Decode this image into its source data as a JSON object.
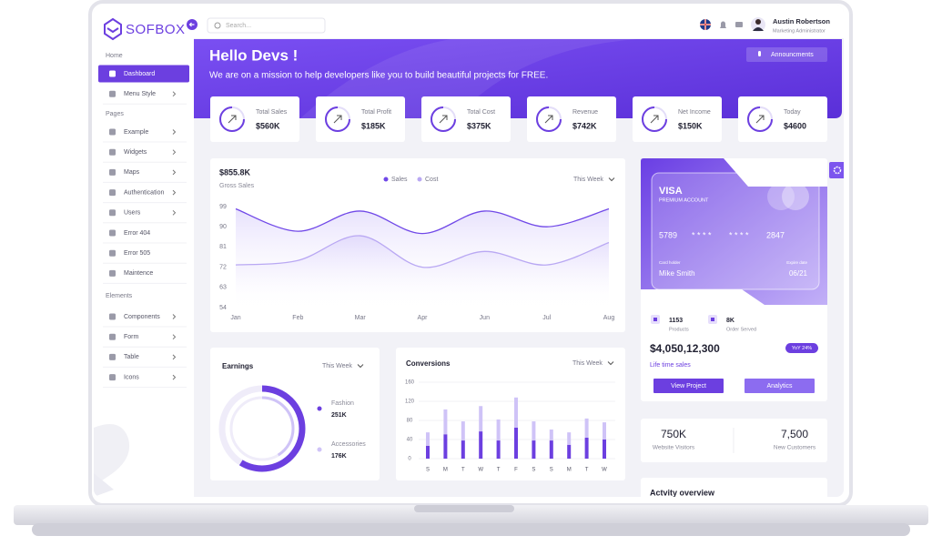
{
  "brand": "SOFBOX",
  "search_placeholder": "Search...",
  "user": {
    "name": "Austin Robertson",
    "role": "Marketing Administrator"
  },
  "sidebar": [
    {
      "title": "Home",
      "items": [
        {
          "label": "Dashboard",
          "active": true,
          "submenu": false
        },
        {
          "label": "Menu Style",
          "submenu": true
        }
      ]
    },
    {
      "title": "Pages",
      "items": [
        {
          "label": "Example",
          "submenu": true
        },
        {
          "label": "Widgets",
          "submenu": true
        },
        {
          "label": "Maps",
          "submenu": true
        },
        {
          "label": "Authentication",
          "submenu": true
        },
        {
          "label": "Users",
          "submenu": true
        },
        {
          "label": "Error 404",
          "submenu": false
        },
        {
          "label": "Error 505",
          "submenu": false
        },
        {
          "label": "Maintence",
          "submenu": false
        }
      ]
    },
    {
      "title": "Elements",
      "items": [
        {
          "label": "Components",
          "submenu": true
        },
        {
          "label": "Form",
          "submenu": true
        },
        {
          "label": "Table",
          "submenu": true
        },
        {
          "label": "Icons",
          "submenu": true
        }
      ]
    }
  ],
  "banner": {
    "title": "Hello Devs !",
    "subtitle": "We are on a mission to help developers like you to build beautiful projects for FREE.",
    "button": "Announcments"
  },
  "stats": [
    {
      "label": "Total Sales",
      "value": "$560K"
    },
    {
      "label": "Total Profit",
      "value": "$185K"
    },
    {
      "label": "Total Cost",
      "value": "$375K"
    },
    {
      "label": "Revenue",
      "value": "$742K"
    },
    {
      "label": "Net Income",
      "value": "$150K"
    },
    {
      "label": "Today",
      "value": "$4600"
    }
  ],
  "chart_data": [
    {
      "type": "line",
      "title": "$855.8K",
      "subtitle": "Gross Sales",
      "period": "This Week",
      "categories": [
        "Jan",
        "Feb",
        "Mar",
        "Apr",
        "Jun",
        "Jul",
        "Aug"
      ],
      "series": [
        {
          "name": "Sales",
          "color": "#7048e8",
          "values": [
            98,
            88,
            97,
            87,
            97,
            90,
            98
          ]
        },
        {
          "name": "Cost",
          "color": "#b9a8f3",
          "values": [
            73,
            75,
            86,
            72,
            79,
            73,
            83
          ]
        }
      ],
      "ylim": [
        54,
        99
      ],
      "yticks": [
        54,
        63,
        72,
        81,
        90,
        99
      ]
    },
    {
      "type": "donut",
      "title": "Earnings",
      "period": "This Week",
      "categories": [
        "Fashion",
        "Accessories"
      ],
      "values": [
        251,
        176
      ],
      "value_labels": [
        "251K",
        "176K"
      ],
      "colors": [
        "#6c3fe0",
        "#cfc3f7"
      ]
    },
    {
      "type": "bar",
      "title": "Conversions",
      "period": "This Week",
      "stacked": true,
      "categories": [
        "S",
        "M",
        "T",
        "W",
        "T",
        "F",
        "S",
        "S",
        "M",
        "T",
        "W"
      ],
      "series": [
        {
          "color": "#6c3fe0",
          "values": [
            27,
            51,
            38,
            57,
            38,
            65,
            38,
            38,
            29,
            44,
            40
          ]
        },
        {
          "color": "#cfc3f7",
          "values": [
            28,
            52,
            40,
            53,
            44,
            63,
            40,
            23,
            26,
            40,
            36
          ]
        }
      ],
      "ylim": [
        0,
        160
      ],
      "yticks": [
        0,
        40,
        80,
        120,
        160
      ],
      "grid": true
    }
  ],
  "card": {
    "brand": "VISA",
    "tier": "PREMIUM ACCOUNT",
    "number": [
      "5789",
      "* * * *",
      "* * * *",
      "2847"
    ],
    "holder_label": "Card holder",
    "holder": "Mike Smith",
    "expiry_label": "Expire date",
    "expiry": "06/21"
  },
  "summary": {
    "items": [
      {
        "value": "1153",
        "label": "Products"
      },
      {
        "value": "8K",
        "label": "Order Served"
      }
    ],
    "total": "$4,050,12,300",
    "badge": "YoY 24%",
    "caption": "Life time sales",
    "buttons": [
      "View Project",
      "Analytics"
    ]
  },
  "visitors": [
    {
      "value": "750K",
      "label": "Website Visitors"
    },
    {
      "value": "7,500",
      "label": "New Customers"
    }
  ],
  "activity": {
    "title": "Actvity overview"
  }
}
